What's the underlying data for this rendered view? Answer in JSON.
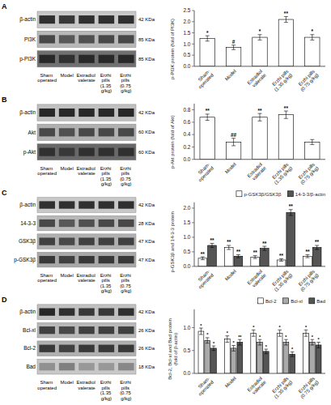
{
  "chart_data": [
    {
      "type": "blot",
      "title": "A",
      "categories": [
        "Sham operated",
        "Model",
        "Estradiol valerate",
        "Erzhi pills (1.35 g/kg)",
        "Erzhi pills (0.75 g/kg)"
      ],
      "series": [
        {
          "name": "β-actin",
          "annotation": "42 KDa",
          "color": "#c8c8c8",
          "colors": [
            "#303030",
            "#383838",
            "#303030",
            "#303030",
            "#303030"
          ]
        },
        {
          "name": "PI3K",
          "annotation": "85 KDa",
          "color": "#b8b8b8",
          "colors": [
            "#484848",
            "#585858",
            "#505050",
            "#484848",
            "#484848"
          ]
        },
        {
          "name": "p-PI3K",
          "annotation": "85 KDa",
          "color": "#707070",
          "colors": [
            "#282828",
            "#303030",
            "#282828",
            "#282828",
            "#282828"
          ]
        }
      ]
    },
    {
      "type": "bar",
      "categories": [
        "Sham-\noperated",
        "Model",
        "Estradiol\nvalerate",
        "Erzhi pills\n(1.35 g/kg)",
        "Erzhi pills\n(0.75 g/kg)"
      ],
      "values": [
        1.25,
        0.85,
        1.3,
        2.1,
        1.3
      ],
      "errors": [
        0.12,
        0.1,
        0.12,
        0.13,
        0.12
      ],
      "annotations": [
        "*",
        "#",
        "*",
        "**",
        "*"
      ],
      "color": "white",
      "ylabel": "p-PI3K protein (fold of PI3K)",
      "ylim": [
        0,
        2.5
      ],
      "yticks": [
        {
          "value": 0,
          "label": "0.0"
        },
        0.5,
        {
          "value": 1,
          "label": "1.0"
        },
        1.5,
        {
          "value": 2,
          "label": "2.0"
        },
        2.5
      ]
    },
    {
      "type": "blot",
      "title": "B",
      "categories": [
        "Sham operated",
        "Model",
        "Estradiol valerate",
        "Erzhi pills (1.35 g/kg)",
        "Erzhi pills (0.75 g/kg)"
      ],
      "series": [
        {
          "name": "β-actin",
          "annotation": "42 KDa",
          "color": "#c0c0c0",
          "colors": [
            "#282828",
            "#282828",
            "#282828",
            "#282828",
            "#282828"
          ]
        },
        {
          "name": "Akt",
          "annotation": "60 KDa",
          "color": "#b0b0b0",
          "colors": [
            "#484848",
            "#505050",
            "#484848",
            "#484848",
            "#484848"
          ]
        },
        {
          "name": "p-Akt",
          "annotation": "60 KDa",
          "color": "#686868",
          "colors": [
            "#303030",
            "#383838",
            "#303030",
            "#303030",
            "#303030"
          ]
        }
      ]
    },
    {
      "type": "bar",
      "categories": [
        "Sham-\noperated",
        "Model",
        "Estradiol\nvalerate",
        "Erzhi pills\n(1.35 g/kg)",
        "Erzhi pills\n(0.75 g/kg)"
      ],
      "values": [
        0.68,
        0.28,
        0.68,
        0.72,
        0.28
      ],
      "errors": [
        0.05,
        0.06,
        0.06,
        0.06,
        0.04
      ],
      "annotations": [
        "**",
        "##",
        "**",
        "**",
        null
      ],
      "color": "white",
      "ylabel": "p-Akt protein (fold of Akt)",
      "ylim": [
        0,
        0.9
      ],
      "yticks": [
        {
          "value": 0,
          "label": "0.0"
        },
        0.2,
        0.4,
        0.6,
        0.8
      ]
    },
    {
      "type": "blot",
      "title": "C",
      "categories": [
        "Sham operated",
        "Model",
        "Estradiol valerate",
        "Erzhi pills (1.35 g/kg)",
        "Erzhi pills (0.75 g/kg)"
      ],
      "series": [
        {
          "name": "β-actin",
          "annotation": "42 KDa",
          "color": "#c8c8c8",
          "colors": [
            "#303030",
            "#303030",
            "#303030",
            "#303030",
            "#303030"
          ]
        },
        {
          "name": "14-3-3",
          "annotation": "28 KDa",
          "color": "#b8b8b8",
          "colors": [
            "#484848",
            "#585858",
            "#505050",
            "#484848",
            "#484848"
          ]
        },
        {
          "name": "GSK3β",
          "annotation": "47 KDa",
          "color": "#b0b0b0",
          "colors": [
            "#404040",
            "#484848",
            "#404040",
            "#404040",
            "#404040"
          ]
        },
        {
          "name": "p-GSK3β",
          "annotation": "47 KDa",
          "color": "#a8a8a8",
          "colors": [
            "#383838",
            "#404040",
            "#383838",
            "#383838",
            "#383838"
          ]
        }
      ]
    },
    {
      "type": "bar",
      "categories": [
        "Sham-\noperated",
        "Model",
        "Estradiol\nvalerate",
        "Erzhi pills\n(1.35 g/kg)",
        "Erzhi pills\n(0.75 g/kg)"
      ],
      "series": [
        {
          "name": "p-GSK3β/GSK3β",
          "color": "white",
          "values": [
            0.28,
            0.65,
            0.32,
            0.22,
            0.35
          ],
          "errors": [
            0.05,
            0.07,
            0.05,
            0.04,
            0.05
          ],
          "annotations": [
            "**",
            "**",
            "**",
            "**",
            "**"
          ]
        },
        {
          "name": "14-3-3/β-actin",
          "color": "#555555",
          "values": [
            0.72,
            0.35,
            0.62,
            1.85,
            0.65
          ],
          "errors": [
            0.07,
            0.05,
            0.07,
            0.1,
            0.07
          ],
          "annotations": [
            "**",
            "**",
            "**",
            "**",
            "**"
          ]
        }
      ],
      "legend": "upper right",
      "ylabel": "p-GSK3β and 14-3-3 protein",
      "ylim": [
        0,
        2.2
      ],
      "yticks": [
        {
          "value": 0,
          "label": "0.0"
        },
        0.5,
        {
          "value": 1,
          "label": "1.0"
        },
        1.5,
        {
          "value": 2,
          "label": "2.0"
        }
      ]
    },
    {
      "type": "blot",
      "title": "D",
      "categories": [
        "Sham operated",
        "Model",
        "Estradiol valerate",
        "Erzhi pills (1.35 g/kg)",
        "Erzhi pills (0.75 g/kg)"
      ],
      "series": [
        {
          "name": "β-actin",
          "annotation": "42 KDa",
          "color": "#c0c0c0",
          "colors": [
            "#282828",
            "#303030",
            "#383838",
            "#383838",
            "#303030"
          ]
        },
        {
          "name": "Bcl-xl",
          "annotation": "26 KDa",
          "color": "#b8b8b8",
          "colors": [
            "#404040",
            "#484848",
            "#404040",
            "#404040",
            "#404040"
          ]
        },
        {
          "name": "Bcl-2",
          "annotation": "26 KDa",
          "color": "#b0b0b0",
          "colors": [
            "#383838",
            "#404040",
            "#383838",
            "#383838",
            "#383838"
          ]
        },
        {
          "name": "Bad",
          "annotation": "18 KDa",
          "color": "#c8c8c8",
          "colors": [
            "#909090",
            "#808080",
            "#989898",
            "#989898",
            "#888888"
          ]
        }
      ]
    },
    {
      "type": "bar",
      "categories": [
        "Sham-\noperated",
        "Model",
        "Estradiol\nvalerate",
        "Erzhi pills\n(1.35 g/kg)",
        "Erzhi pills\n(0.75 g/kg)"
      ],
      "series": [
        {
          "name": "Bcl-2",
          "color": "white",
          "values": [
            0.92,
            0.75,
            0.88,
            0.88,
            0.88
          ],
          "errors": [
            0.07,
            0.07,
            0.07,
            0.07,
            0.07
          ],
          "annotations": [
            "*",
            "*",
            "*",
            "*",
            "*"
          ]
        },
        {
          "name": "Bcl-xl",
          "color": "#aaaaaa",
          "values": [
            0.72,
            0.55,
            0.68,
            0.68,
            0.68
          ],
          "errors": [
            0.06,
            0.06,
            0.06,
            0.06,
            0.06
          ],
          "annotations": [
            "*",
            "*",
            "*",
            "*",
            "*"
          ]
        },
        {
          "name": "Bad",
          "color": "#555555",
          "values": [
            0.55,
            0.68,
            0.48,
            0.42,
            0.62
          ],
          "errors": [
            0.05,
            0.06,
            0.05,
            0.05,
            0.06
          ],
          "annotations": [
            "*",
            "**",
            "*",
            "*",
            "*"
          ]
        }
      ],
      "legend": "upper right",
      "ylabel": "Bcl-2, Bcl-xl and Bad protein\n(fold of β-actin)",
      "ylim": [
        0,
        1.4
      ],
      "yticks": [
        {
          "value": 0,
          "label": "0.0"
        },
        0.5,
        {
          "value": 1,
          "label": "1.0"
        }
      ]
    }
  ]
}
